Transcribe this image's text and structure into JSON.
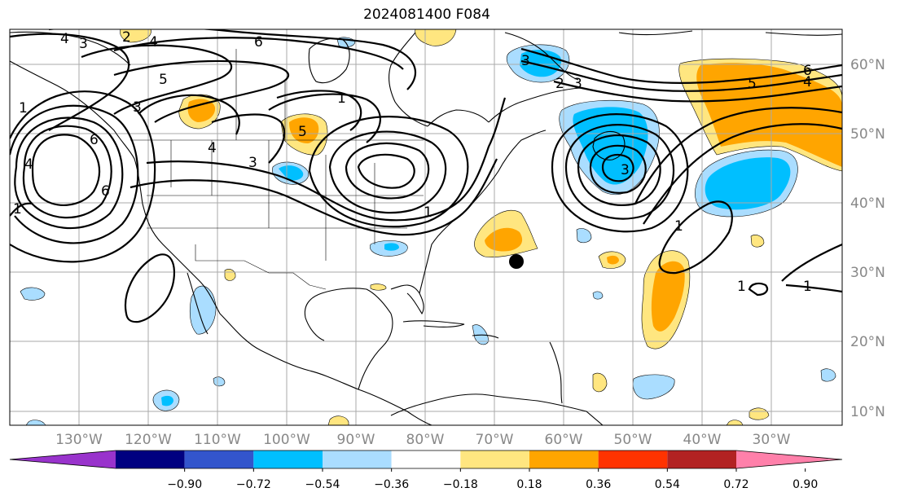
{
  "title": "2024081400 F084",
  "lat_labels": [
    "60°N",
    "50°N",
    "40°N",
    "30°N",
    "20°N",
    "10°N"
  ],
  "lon_labels": [
    "130°W",
    "120°W",
    "110°W",
    "100°W",
    "90°W",
    "80°W",
    "70°W",
    "60°W",
    "50°W",
    "40°W",
    "30°W"
  ],
  "colorbar": {
    "ticks": [
      "−0.90",
      "−0.72",
      "−0.54",
      "−0.36",
      "−0.18",
      "0.18",
      "0.36",
      "0.54",
      "0.72",
      "0.90"
    ],
    "colors": [
      "#9933cc",
      "#000080",
      "#3355cc",
      "#00bfff",
      "#aaddff",
      "#ffffff",
      "#ffe680",
      "#ffa500",
      "#ff3300",
      "#b22222",
      "#ff80aa"
    ]
  },
  "contour_labels": [
    "4",
    "3",
    "2",
    "4",
    "6",
    "5",
    "3",
    "4",
    "1",
    "3",
    "1",
    "6",
    "1",
    "1",
    "5",
    "6",
    "4",
    "6",
    "3",
    "2",
    "3",
    "5",
    "4",
    "1",
    "1",
    "3",
    "1"
  ],
  "marker": "black-dot"
}
